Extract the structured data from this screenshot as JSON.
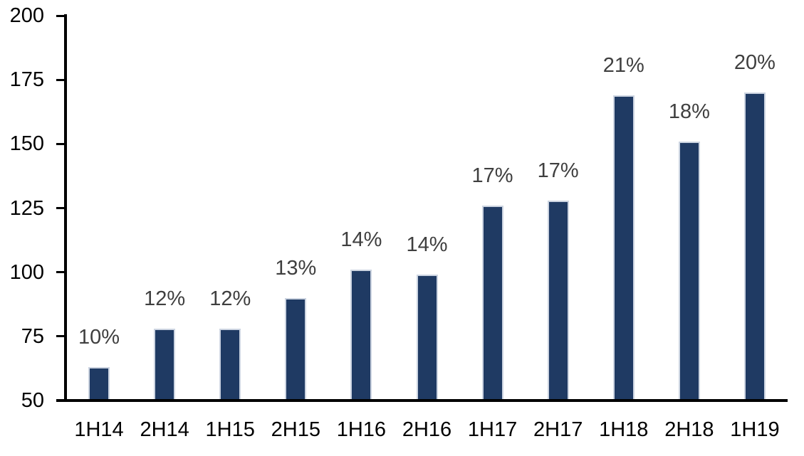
{
  "chart_data": {
    "type": "bar",
    "title": "",
    "categories": [
      "1H14",
      "2H14",
      "1H15",
      "2H15",
      "1H16",
      "2H16",
      "1H17",
      "2H17",
      "1H18",
      "2H18",
      "1H19"
    ],
    "series": [
      {
        "name": "bars",
        "values": [
          63,
          78,
          78,
          90,
          101,
          99,
          126,
          128,
          169,
          151,
          170
        ],
        "data_labels": [
          "10%",
          "12%",
          "12%",
          "13%",
          "14%",
          "14%",
          "17%",
          "17%",
          "21%",
          "18%",
          "20%"
        ]
      }
    ],
    "xlabel": "",
    "ylabel": "",
    "ylim": [
      50,
      200
    ],
    "ytick_step": 25,
    "ytick_labels": [
      "50",
      "75",
      "100",
      "125",
      "150",
      "175",
      "200"
    ],
    "grid": false,
    "legend": false,
    "colors": {
      "bar_fill": "#1F3A63",
      "bar_edge": "#CCD4E1",
      "data_label": "#3F3F3F",
      "axis_line": "#000000",
      "axis_label": "#000000",
      "background": "#FFFFFF"
    }
  }
}
